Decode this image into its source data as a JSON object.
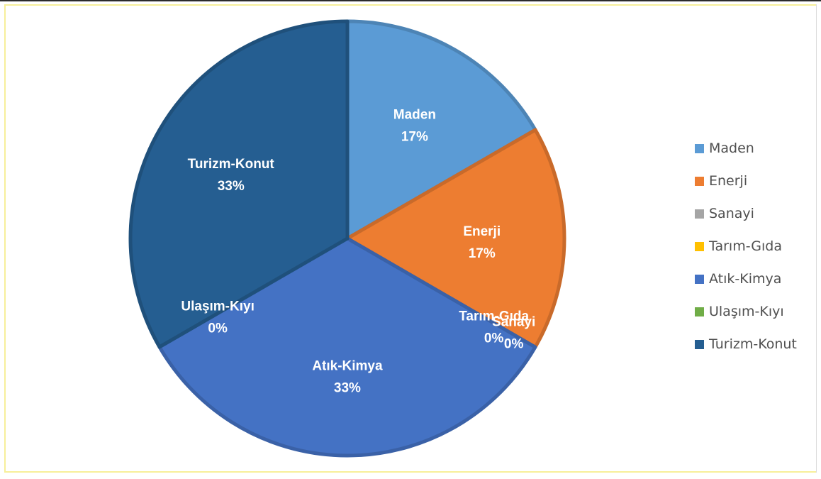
{
  "chart_data": {
    "type": "pie",
    "categories": [
      "Maden",
      "Enerji",
      "Sanayi",
      "Tarım-Gıda",
      "Atık-Kimya",
      "Ulaşım-Kıyı",
      "Turizm-Konut"
    ],
    "values": [
      16.67,
      16.67,
      0,
      0,
      33.33,
      0,
      33.33
    ],
    "data_labels": [
      "17%",
      "17%",
      "0%",
      "0%",
      "33%",
      "0%",
      "33%"
    ],
    "colors": [
      "#5b9bd5",
      "#ed7d31",
      "#a5a5a5",
      "#ffc000",
      "#4472c4",
      "#70ad47",
      "#255e91"
    ],
    "legend_position": "right",
    "start_angle_deg": 0,
    "direction": "clockwise"
  }
}
